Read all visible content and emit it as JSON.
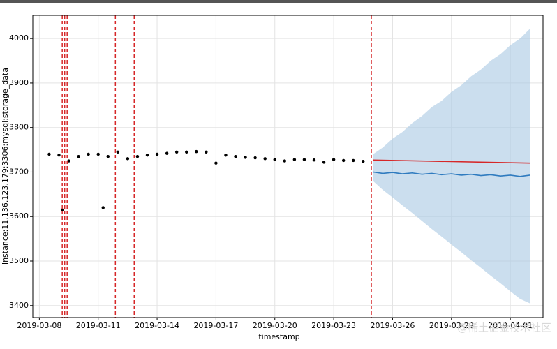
{
  "chart_data": {
    "type": "line",
    "ylabel": "instance:11.136.123.179:3306:mysql:storage_data",
    "xlabel": "timestamp",
    "watermark": "@稀土掘金技术社区",
    "xlim": [
      "2019-03-07 16:00",
      "2019-04-02 16:00"
    ],
    "ylim": [
      3373,
      4052
    ],
    "xticks": [
      "2019-03-08",
      "2019-03-11",
      "2019-03-14",
      "2019-03-17",
      "2019-03-20",
      "2019-03-23",
      "2019-03-26",
      "2019-03-29",
      "2019-04-01"
    ],
    "yticks": [
      3400,
      3500,
      3600,
      3700,
      3800,
      3900,
      4000
    ],
    "grid": true,
    "band": {
      "color": "#a9c8e2",
      "x": [
        "2019-03-25 00:00",
        "2019-03-25 12:00",
        "2019-03-26 00:00",
        "2019-03-26 12:00",
        "2019-03-27 00:00",
        "2019-03-27 12:00",
        "2019-03-28 00:00",
        "2019-03-28 12:00",
        "2019-03-29 00:00",
        "2019-03-29 12:00",
        "2019-03-30 00:00",
        "2019-03-30 12:00",
        "2019-03-31 00:00",
        "2019-03-31 12:00",
        "2019-04-01 00:00",
        "2019-04-01 12:00",
        "2019-04-02 00:00"
      ],
      "upper": [
        3740,
        3755,
        3775,
        3790,
        3810,
        3826,
        3846,
        3860,
        3880,
        3895,
        3915,
        3930,
        3950,
        3965,
        3985,
        4000,
        4022
      ],
      "lower": [
        3680,
        3660,
        3643,
        3625,
        3608,
        3590,
        3572,
        3555,
        3537,
        3520,
        3502,
        3485,
        3467,
        3450,
        3432,
        3415,
        3405
      ]
    },
    "series": [
      {
        "kind": "scatter",
        "color": "#000000",
        "x": [
          "2019-03-08 12:00",
          "2019-03-09 00:00",
          "2019-03-09 04:00",
          "2019-03-09 12:00",
          "2019-03-10 00:00",
          "2019-03-10 12:00",
          "2019-03-11 00:00",
          "2019-03-11 06:00",
          "2019-03-11 12:00",
          "2019-03-12 00:00",
          "2019-03-12 12:00",
          "2019-03-13 00:00",
          "2019-03-13 12:00",
          "2019-03-14 00:00",
          "2019-03-14 12:00",
          "2019-03-15 00:00",
          "2019-03-15 12:00",
          "2019-03-16 00:00",
          "2019-03-16 12:00",
          "2019-03-17 00:00",
          "2019-03-17 12:00",
          "2019-03-18 00:00",
          "2019-03-18 12:00",
          "2019-03-19 00:00",
          "2019-03-19 12:00",
          "2019-03-20 00:00",
          "2019-03-20 12:00",
          "2019-03-21 00:00",
          "2019-03-21 12:00",
          "2019-03-22 00:00",
          "2019-03-22 12:00",
          "2019-03-23 00:00",
          "2019-03-23 12:00",
          "2019-03-24 00:00",
          "2019-03-24 12:00"
        ],
        "values": [
          3740,
          3738,
          3615,
          3725,
          3735,
          3740,
          3740,
          3620,
          3735,
          3745,
          3730,
          3735,
          3738,
          3740,
          3742,
          3745,
          3745,
          3746,
          3745,
          3720,
          3738,
          3735,
          3733,
          3732,
          3730,
          3728,
          3725,
          3728,
          3728,
          3727,
          3722,
          3728,
          3726,
          3726,
          3724
        ]
      },
      {
        "kind": "line",
        "color": "#2f7bbf",
        "x": [
          "2019-03-25 00:00",
          "2019-03-25 12:00",
          "2019-03-26 00:00",
          "2019-03-26 12:00",
          "2019-03-27 00:00",
          "2019-03-27 12:00",
          "2019-03-28 00:00",
          "2019-03-28 12:00",
          "2019-03-29 00:00",
          "2019-03-29 12:00",
          "2019-03-30 00:00",
          "2019-03-30 12:00",
          "2019-03-31 00:00",
          "2019-03-31 12:00",
          "2019-04-01 00:00",
          "2019-04-01 12:00",
          "2019-04-02 00:00"
        ],
        "values": [
          3700,
          3697,
          3699,
          3696,
          3698,
          3695,
          3697,
          3694,
          3696,
          3693,
          3695,
          3692,
          3694,
          3691,
          3693,
          3690,
          3693
        ]
      },
      {
        "kind": "line",
        "color": "#d62728",
        "x": [
          "2019-03-25 00:00",
          "2019-04-02 00:00"
        ],
        "values": [
          3727,
          3720
        ]
      }
    ],
    "changepoints": {
      "color": "#d62728",
      "x": [
        "2019-03-09 04:00",
        "2019-03-09 07:00",
        "2019-03-09 10:00",
        "2019-03-11 21:00",
        "2019-03-12 20:00",
        "2019-03-24 22:00"
      ]
    }
  }
}
